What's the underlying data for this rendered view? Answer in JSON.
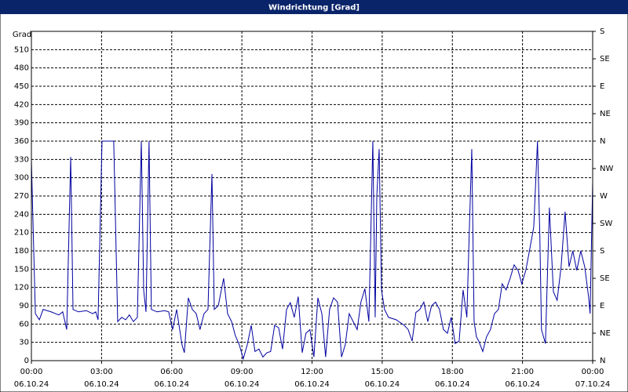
{
  "chart_data": {
    "type": "line",
    "title": "Windrichtung [Grad]",
    "ylabel": "Grad",
    "x": [
      0.0,
      0.17,
      0.34,
      0.5,
      0.84,
      1.17,
      1.34,
      1.51,
      1.68,
      1.78,
      2.01,
      2.35,
      2.62,
      2.75,
      2.85,
      3.02,
      3.52,
      3.69,
      3.86,
      4.03,
      4.19,
      4.36,
      4.53,
      4.7,
      4.8,
      4.9,
      5.03,
      5.13,
      5.37,
      5.7,
      5.87,
      6.04,
      6.21,
      6.44,
      6.54,
      6.71,
      6.88,
      7.05,
      7.21,
      7.38,
      7.55,
      7.72,
      7.82,
      7.99,
      8.22,
      8.39,
      8.56,
      8.72,
      8.89,
      9.06,
      9.23,
      9.4,
      9.56,
      9.73,
      9.9,
      10.07,
      10.23,
      10.4,
      10.57,
      10.74,
      10.91,
      11.07,
      11.24,
      11.41,
      11.58,
      11.74,
      11.91,
      12.08,
      12.25,
      12.42,
      12.58,
      12.75,
      12.92,
      13.09,
      13.26,
      13.42,
      13.59,
      13.76,
      13.93,
      14.09,
      14.26,
      14.43,
      14.6,
      14.7,
      14.77,
      14.87,
      14.97,
      15.1,
      15.27,
      15.6,
      15.94,
      16.11,
      16.28,
      16.44,
      16.61,
      16.78,
      16.95,
      17.11,
      17.28,
      17.45,
      17.62,
      17.79,
      17.95,
      18.12,
      18.29,
      18.46,
      18.62,
      18.72,
      18.83,
      18.93,
      19.03,
      19.13,
      19.3,
      19.46,
      19.63,
      19.8,
      19.97,
      20.13,
      20.3,
      20.47,
      20.64,
      20.81,
      20.97,
      21.14,
      21.31,
      21.48,
      21.64,
      21.74,
      21.81,
      21.98,
      22.15,
      22.32,
      22.48,
      22.65,
      22.82,
      22.99,
      23.15,
      23.32,
      23.49,
      23.66,
      23.83,
      23.89,
      24.0
    ],
    "values": [
      328,
      77,
      67,
      84,
      80,
      75,
      80,
      51,
      334,
      84,
      80,
      82,
      77,
      80,
      67,
      360,
      360,
      64,
      71,
      67,
      75,
      64,
      71,
      360,
      116,
      80,
      360,
      84,
      80,
      82,
      80,
      51,
      84,
      26,
      13,
      103,
      84,
      77,
      51,
      77,
      84,
      306,
      84,
      90,
      135,
      77,
      64,
      41,
      26,
      3,
      26,
      58,
      15,
      19,
      6,
      13,
      15,
      58,
      54,
      19,
      84,
      95,
      71,
      105,
      13,
      45,
      51,
      6,
      103,
      77,
      6,
      84,
      103,
      96,
      6,
      26,
      77,
      64,
      51,
      96,
      118,
      64,
      360,
      71,
      270,
      347,
      116,
      84,
      71,
      67,
      58,
      51,
      32,
      79,
      84,
      96,
      64,
      90,
      96,
      84,
      51,
      45,
      71,
      28,
      32,
      116,
      71,
      206,
      347,
      64,
      39,
      32,
      15,
      39,
      51,
      77,
      84,
      126,
      116,
      135,
      157,
      148,
      126,
      148,
      183,
      219,
      360,
      206,
      51,
      28,
      251,
      113,
      99,
      154,
      244,
      154,
      180,
      148,
      180,
      154,
      103,
      77,
      293
    ],
    "color": "#0000a0",
    "xlim": [
      0,
      24
    ],
    "xticks": [
      {
        "value": 0,
        "label": "00:00 06.10.24"
      },
      {
        "value": 3,
        "label": "03:00 06.10.24"
      },
      {
        "value": 6,
        "label": "06:00 06.10.24"
      },
      {
        "value": 9,
        "label": "09:00 06.10.24"
      },
      {
        "value": 12,
        "label": "12:00 06.10.24"
      },
      {
        "value": 15,
        "label": "15:00 06.10.24"
      },
      {
        "value": 18,
        "label": "18:00 06.10.24"
      },
      {
        "value": 21,
        "label": "21:00 06.10.24"
      },
      {
        "value": 24,
        "label": "00:00 07.10.24"
      }
    ],
    "ylim": [
      0,
      540
    ],
    "yticks": [
      0,
      30,
      60,
      90,
      120,
      150,
      180,
      210,
      240,
      270,
      300,
      330,
      360,
      390,
      420,
      450,
      480,
      510
    ],
    "y2lim": [
      0,
      540
    ],
    "y2ticks": [
      {
        "value": 0,
        "label": "N"
      },
      {
        "value": 45,
        "label": "NE"
      },
      {
        "value": 90,
        "label": "E"
      },
      {
        "value": 135,
        "label": "SE"
      },
      {
        "value": 180,
        "label": "S"
      },
      {
        "value": 225,
        "label": "SW"
      },
      {
        "value": 270,
        "label": "W"
      },
      {
        "value": 315,
        "label": "NW"
      },
      {
        "value": 360,
        "label": "N"
      },
      {
        "value": 405,
        "label": "NE"
      },
      {
        "value": 450,
        "label": "E"
      },
      {
        "value": 495,
        "label": "SE"
      },
      {
        "value": 540,
        "label": "S"
      }
    ],
    "grid": true
  }
}
